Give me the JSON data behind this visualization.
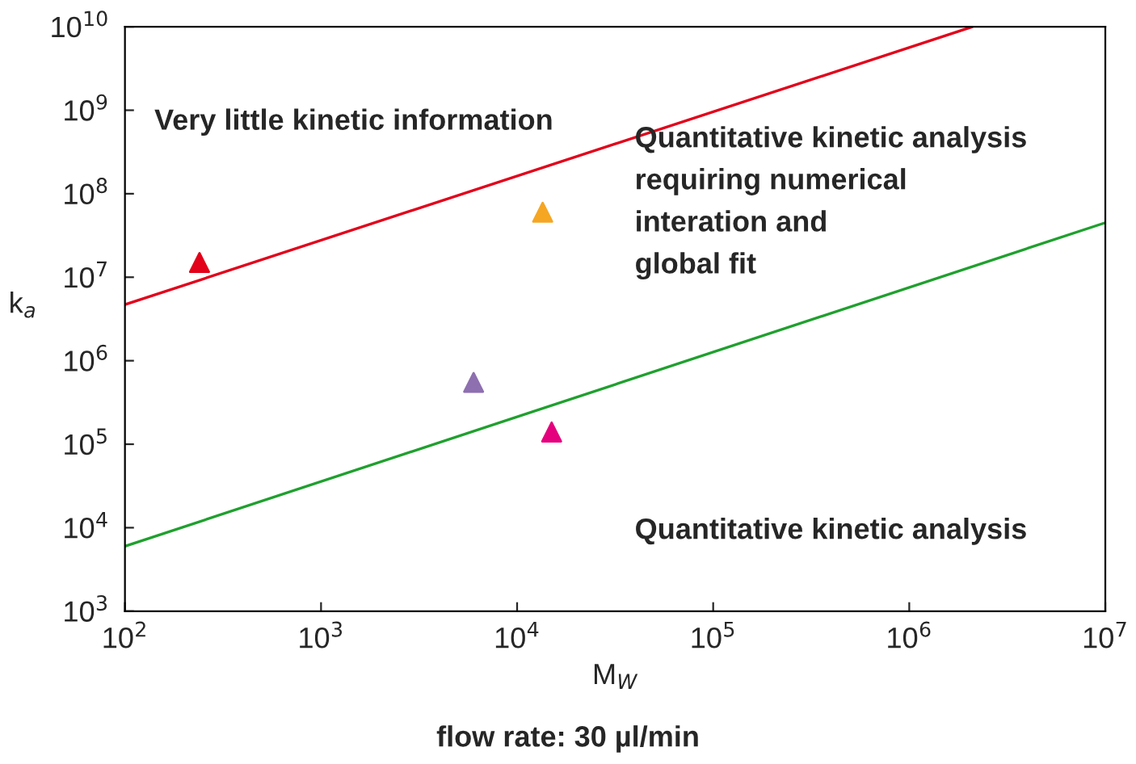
{
  "chart_data": {
    "type": "scatter",
    "xlabel": "M$_{W}$",
    "ylabel": "k$_{a}$",
    "log": "xy",
    "grid": false,
    "legend": false,
    "xlim": [
      100,
      10000000
    ],
    "ylim": [
      1000,
      10000000000
    ],
    "xticks": [
      {
        "value": 100,
        "label": "10$^{2}$"
      },
      {
        "value": 1000,
        "label": "10$^{3}$"
      },
      {
        "value": 10000,
        "label": "10$^{4}$"
      },
      {
        "value": 100000,
        "label": "10$^{5}$"
      },
      {
        "value": 1000000,
        "label": "10$^{6}$"
      },
      {
        "value": 10000000,
        "label": "10$^{7}$"
      }
    ],
    "yticks": [
      {
        "value": 1000,
        "label": "10$^{3}$"
      },
      {
        "value": 10000,
        "label": "10$^{4}$"
      },
      {
        "value": 100000,
        "label": "10$^{5}$"
      },
      {
        "value": 1000000,
        "label": "10$^{6}$"
      },
      {
        "value": 10000000,
        "label": "10$^{7}$"
      },
      {
        "value": 100000000,
        "label": "10$^{8}$"
      },
      {
        "value": 1000000000,
        "label": "10$^{9}$"
      },
      {
        "value": 10000000000,
        "label": "10$^{10}$"
      }
    ],
    "series": [
      {
        "type": "line",
        "color": "#e2001a",
        "x": [
          100,
          2100000
        ],
        "values": [
          4700000,
          10000000000
        ],
        "marker": "none",
        "line_style": "solid"
      },
      {
        "type": "line",
        "color": "#1fa02e",
        "x": [
          100,
          10000000
        ],
        "values": [
          6000,
          45000000
        ],
        "marker": "none",
        "line_style": "solid"
      },
      {
        "marker": "triangle",
        "x": [
          240,
          13500,
          6000,
          15000
        ],
        "values": [
          15000000,
          60000000,
          550000,
          140000
        ],
        "colors": [
          "#e2001a",
          "#f5a623",
          "#8e6fb0",
          "#e5007e"
        ]
      }
    ],
    "annotations": [
      "Very little kinetic information",
      "Quantitative kinetic analysis\nrequiring numerical\ninteration and\nglobal fit",
      "Quantitative kinetic analysis",
      "flow rate: 30 µl/min"
    ]
  }
}
